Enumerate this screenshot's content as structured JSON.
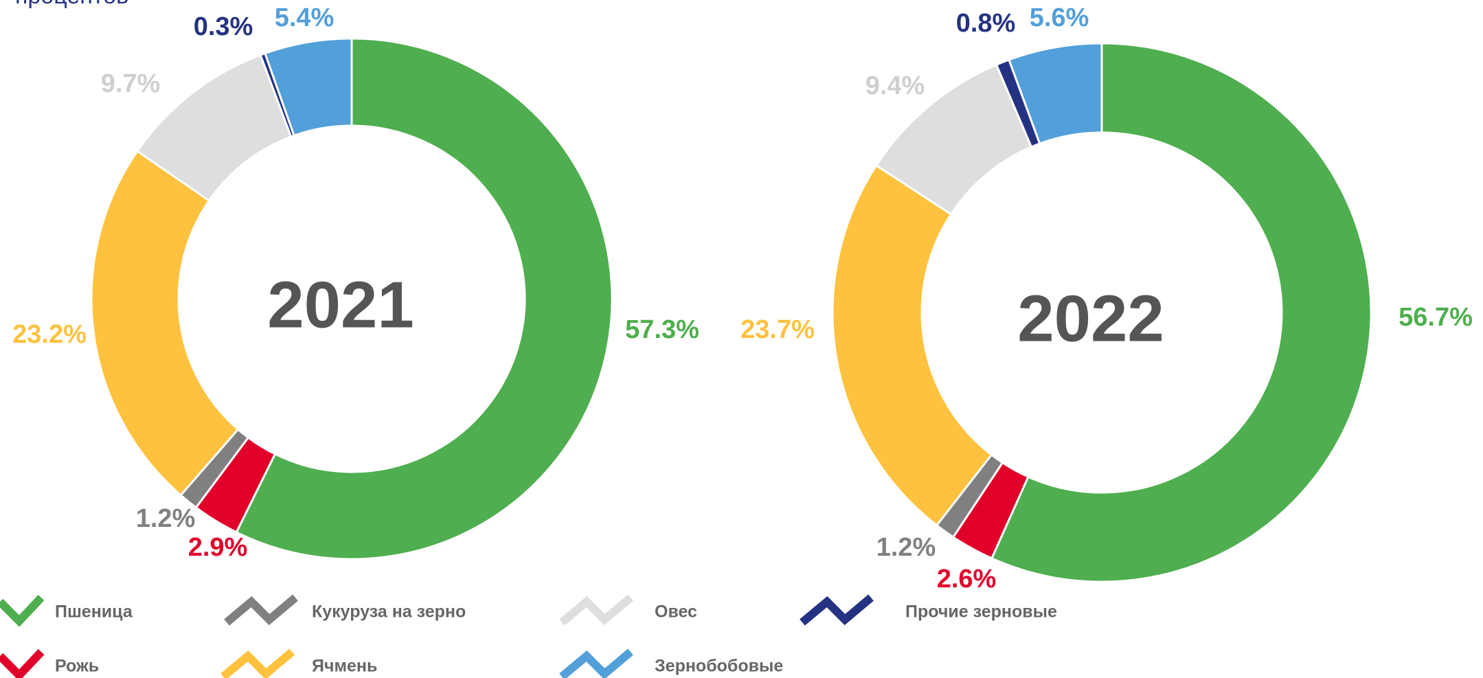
{
  "caption": "процентов",
  "chart_data": [
    {
      "type": "pie",
      "title": "2021",
      "categories": [
        "Пшеница",
        "Рожь",
        "Кукуруза на зерно",
        "Ячмень",
        "Овес",
        "Прочие зерновые",
        "Зернобобовые"
      ],
      "values": [
        57.3,
        2.9,
        1.2,
        23.2,
        9.7,
        0.3,
        5.4
      ],
      "value_labels": [
        "57.3%",
        "2.9%",
        "1.2%",
        "23.2%",
        "9.7%",
        "0.3%",
        "5.4%"
      ],
      "colors": [
        "#4fae4f",
        "#e0002a",
        "#808080",
        "#ffc23e",
        "#dedede",
        "#253282",
        "#529fd9"
      ]
    },
    {
      "type": "pie",
      "title": "2022",
      "categories": [
        "Пшеница",
        "Рожь",
        "Кукуруза на зерно",
        "Ячмень",
        "Овес",
        "Прочие зерновые",
        "Зернобобовые"
      ],
      "values": [
        56.7,
        2.6,
        1.2,
        23.7,
        9.4,
        0.8,
        5.6
      ],
      "value_labels": [
        "56.7%",
        "2.6%",
        "1.2%",
        "23.7%",
        "9.4%",
        "0.8%",
        "5.6%"
      ],
      "colors": [
        "#4fae4f",
        "#e0002a",
        "#808080",
        "#ffc23e",
        "#dedede",
        "#253282",
        "#529fd9"
      ]
    }
  ]
}
